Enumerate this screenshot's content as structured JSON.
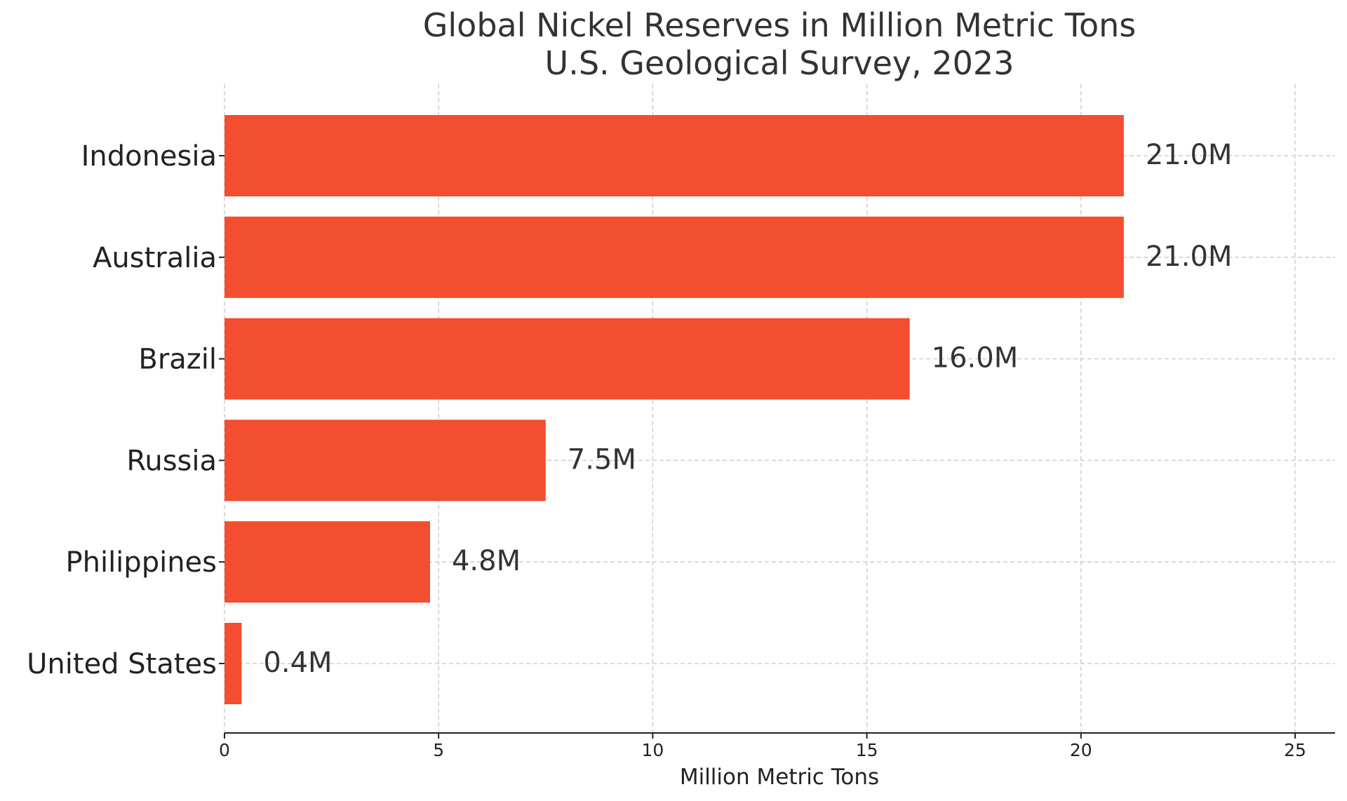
{
  "chart_data": {
    "type": "bar",
    "orientation": "horizontal",
    "title": "Global Nickel Reserves in Million Metric Tons",
    "subtitle": "U.S. Geological Survey, 2023",
    "xlabel": "Million Metric Tons",
    "ylabel": "",
    "categories": [
      "Indonesia",
      "Australia",
      "Brazil",
      "Russia",
      "Philippines",
      "United States"
    ],
    "values": [
      21.0,
      21.0,
      16.0,
      7.5,
      4.8,
      0.4
    ],
    "value_labels": [
      "21.0M",
      "21.0M",
      "16.0M",
      "7.5M",
      "4.8M",
      "0.4M"
    ],
    "xlim": [
      0,
      26
    ],
    "xticks": [
      0,
      5,
      10,
      15,
      20,
      25
    ],
    "xtick_labels": [
      "0",
      "5",
      "10",
      "15",
      "20",
      "25"
    ],
    "grid": true,
    "bar_color": "#f24e2f"
  }
}
